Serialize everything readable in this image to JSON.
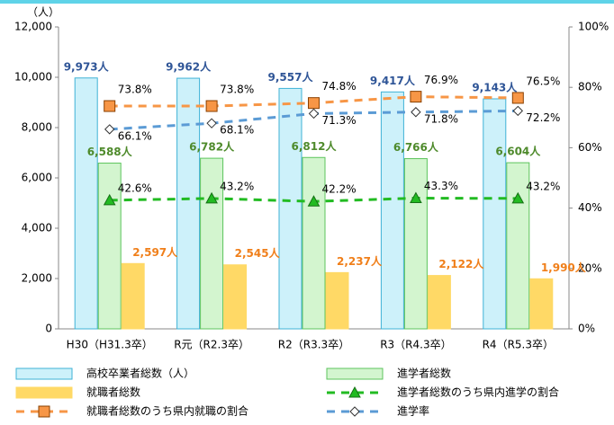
{
  "chart_data": {
    "type": "bar_line",
    "y_label": "（人）",
    "categories": [
      "H30（H31.3卒）",
      "R元（R2.3卒）",
      "R2（R3.3卒）",
      "R3（R4.3卒）",
      "R4（R5.3卒）"
    ],
    "series": [
      {
        "name": "高校卒業者総数（人）",
        "kind": "bar",
        "color": "#cdf1fa",
        "edge": "#3fb2d6",
        "label_color": "#2f5597",
        "values": [
          9973,
          9962,
          9557,
          9417,
          9143
        ],
        "value_labels": [
          "9,973人",
          "9,962人",
          "9,557人",
          "9,417人",
          "9,143人"
        ]
      },
      {
        "name": "進学者総数",
        "kind": "bar",
        "color": "#d3f5cf",
        "edge": "#5cc45c",
        "label_color": "#4e8a2b",
        "values": [
          6588,
          6782,
          6812,
          6766,
          6604
        ],
        "value_labels": [
          "6,588人",
          "6,782人",
          "6,812人",
          "6,766人",
          "6,604人"
        ]
      },
      {
        "name": "就職者総数",
        "kind": "bar",
        "color": "#ffd966",
        "edge": "#ffd966",
        "label_color": "#f07f1a",
        "values": [
          2597,
          2545,
          2237,
          2122,
          1990
        ],
        "value_labels": [
          "2,597人",
          "2,545人",
          "2,237人",
          "2,122人",
          "1,990人"
        ]
      },
      {
        "name": "進学者総数のうち県内進学の割合",
        "kind": "line",
        "axis": "y2",
        "color": "#22bb22",
        "marker": "triangle",
        "values": [
          42.6,
          43.2,
          42.2,
          43.3,
          43.2
        ],
        "value_labels": [
          "42.6%",
          "43.2%",
          "42.2%",
          "43.3%",
          "43.2%"
        ]
      },
      {
        "name": "就職者総数のうち県内就職の割合",
        "kind": "line",
        "axis": "y2",
        "color": "#f79646",
        "marker": "square",
        "values": [
          73.8,
          73.8,
          74.8,
          76.9,
          76.5
        ],
        "value_labels": [
          "73.8%",
          "73.8%",
          "74.8%",
          "76.9%",
          "76.5%"
        ]
      },
      {
        "name": "進学率",
        "kind": "line",
        "axis": "y2",
        "color": "#5b9bd5",
        "marker": "diamond",
        "values": [
          66.1,
          68.1,
          71.3,
          71.8,
          72.2
        ],
        "value_labels": [
          "66.1%",
          "68.1%",
          "71.3%",
          "71.8%",
          "72.2%"
        ]
      }
    ],
    "ylim": [
      0,
      12000
    ],
    "yticks": [
      0,
      {
        "value": 2000,
        "label": "2,000"
      },
      {
        "value": 4000,
        "label": "4,000"
      },
      {
        "value": 6000,
        "label": "6,000"
      },
      {
        "value": 8000,
        "label": "8,000"
      },
      {
        "value": 10000,
        "label": "10,000"
      },
      {
        "value": 12000,
        "label": "12,000"
      }
    ],
    "y2lim": [
      0,
      100
    ],
    "y2ticks": [
      {
        "value": 0,
        "label": "0%"
      },
      {
        "value": 20,
        "label": "20%"
      },
      {
        "value": 40,
        "label": "40%"
      },
      {
        "value": 60,
        "label": "60%"
      },
      {
        "value": 80,
        "label": "80%"
      },
      {
        "value": 100,
        "label": "100%"
      }
    ],
    "legend": "bottom"
  }
}
